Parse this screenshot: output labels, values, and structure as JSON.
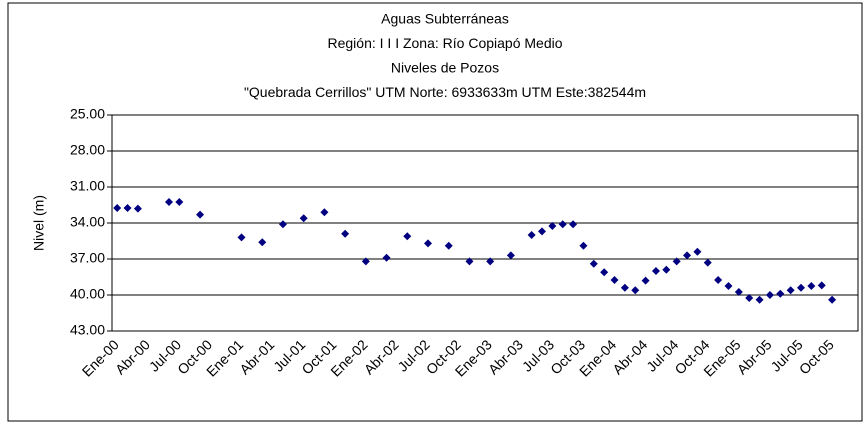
{
  "chart_data": {
    "type": "scatter",
    "title": [
      "Aguas Subterráneas",
      "Región: I I I   Zona: Río Copiapó Medio",
      "Niveles de Pozos",
      "\"Quebrada Cerrillos\" UTM Norte: 6933633m    UTM Este:382544m"
    ],
    "ylabel": "Nivel (m)",
    "categories": [
      "Ene-00",
      null,
      null,
      "Abr-00",
      null,
      null,
      "Jul-00",
      null,
      null,
      "Oct-00",
      null,
      null,
      "Ene-01",
      null,
      null,
      "Abr-01",
      null,
      null,
      "Jul-01",
      null,
      null,
      "Oct-01",
      null,
      null,
      "Ene-02",
      null,
      null,
      "Abr-02",
      null,
      null,
      "Jul-02",
      null,
      null,
      "Oct-02",
      null,
      null,
      "Ene-03",
      null,
      null,
      "Abr-03",
      null,
      null,
      "Jul-03",
      null,
      null,
      "Oct-03",
      null,
      null,
      "Ene-04",
      null,
      null,
      "Abr-04",
      null,
      null,
      "Jul-04",
      null,
      null,
      "Oct-04",
      null,
      null,
      "Ene-05",
      null,
      null,
      "Abr-05",
      null,
      null,
      "Jul-05",
      null,
      null,
      "Oct-05",
      null,
      null
    ],
    "values": [
      32.75,
      32.75,
      32.8,
      null,
      null,
      32.25,
      32.25,
      null,
      33.3,
      null,
      null,
      null,
      35.2,
      null,
      35.6,
      null,
      34.1,
      null,
      33.6,
      null,
      33.1,
      null,
      34.9,
      null,
      37.2,
      null,
      36.9,
      null,
      35.1,
      null,
      35.7,
      null,
      35.9,
      null,
      37.2,
      null,
      37.2,
      null,
      36.7,
      null,
      35.0,
      34.7,
      34.25,
      34.1,
      34.1,
      35.9,
      37.4,
      38.1,
      38.75,
      39.4,
      39.6,
      38.8,
      38.0,
      37.9,
      37.2,
      36.7,
      36.4,
      37.3,
      38.75,
      39.25,
      39.75,
      40.25,
      40.4,
      40.0,
      39.9,
      39.6,
      39.4,
      39.25,
      39.2,
      40.4,
      null,
      null
    ],
    "color": "#000080",
    "ylim": [
      25,
      43
    ],
    "yreverse": true,
    "yticks": [
      {
        "value": 25,
        "label": "25.00"
      },
      {
        "value": 28,
        "label": "28.00"
      },
      {
        "value": 31,
        "label": "31.00"
      },
      {
        "value": 34,
        "label": "34.00"
      },
      {
        "value": 37,
        "label": "37.00"
      },
      {
        "value": 40,
        "label": "40.00"
      },
      {
        "value": 43,
        "label": "43.00"
      }
    ],
    "grid": true
  }
}
